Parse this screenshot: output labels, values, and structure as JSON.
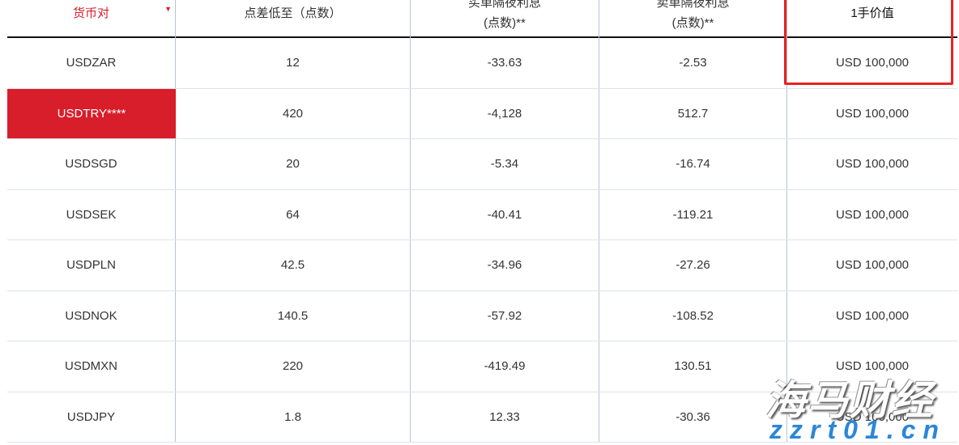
{
  "header": {
    "pair": "货币对",
    "spread": "点差低至（点数）",
    "long_swap": [
      "买单隔夜利息",
      "(点数)**"
    ],
    "short_swap": [
      "卖单隔夜利息",
      "(点数)**"
    ],
    "lot_value": "1手价值"
  },
  "accent": "#d81e2a",
  "rows": [
    {
      "pair": "USDZAR",
      "spread": "12",
      "long": "-33.63",
      "short": "-2.53",
      "value": "USD 100,000"
    },
    {
      "pair": "USDTRY****",
      "spread": "420",
      "long": "-4,128",
      "short": "512.7",
      "value": "USD 100,000",
      "highlight": true
    },
    {
      "pair": "USDSGD",
      "spread": "20",
      "long": "-5.34",
      "short": "-16.74",
      "value": "USD 100,000"
    },
    {
      "pair": "USDSEK",
      "spread": "64",
      "long": "-40.41",
      "short": "-119.21",
      "value": "USD 100,000"
    },
    {
      "pair": "USDPLN",
      "spread": "42.5",
      "long": "-34.96",
      "short": "-27.26",
      "value": "USD 100,000"
    },
    {
      "pair": "USDNOK",
      "spread": "140.5",
      "long": "-57.92",
      "short": "-108.52",
      "value": "USD 100,000"
    },
    {
      "pair": "USDMXN",
      "spread": "220",
      "long": "-419.49",
      "short": "130.51",
      "value": "USD 100,000"
    },
    {
      "pair": "USDJPY",
      "spread": "1.8",
      "long": "12.33",
      "short": "-30.36",
      "value": "USD 100,000"
    }
  ],
  "watermark": {
    "title": "海马财经",
    "url": "zzrt01.cn"
  }
}
